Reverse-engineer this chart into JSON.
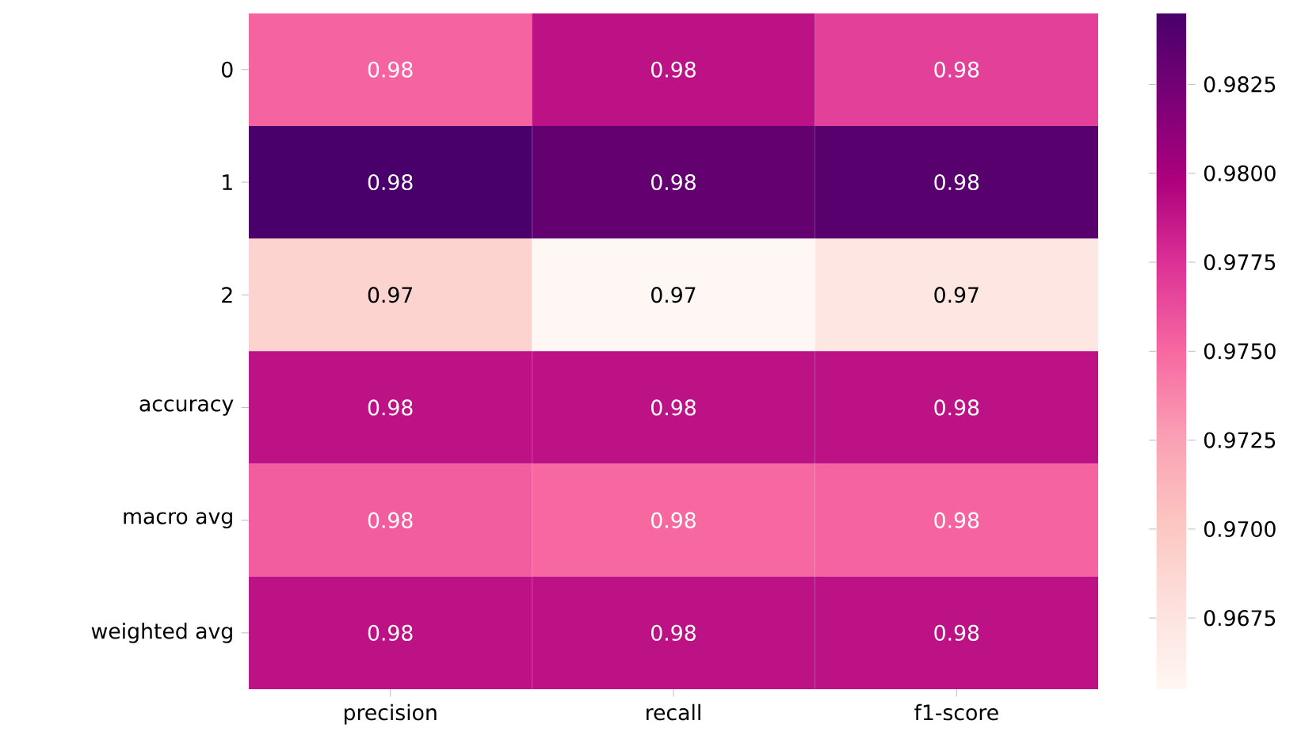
{
  "chart_data": {
    "type": "heatmap",
    "categories": [
      "precision",
      "recall",
      "f1-score"
    ],
    "y_categories": [
      "0",
      "1",
      "2",
      "accuracy",
      "macro avg",
      "weighted avg"
    ],
    "cells": [
      [
        0.9752,
        0.979,
        0.9768
      ],
      [
        0.9845,
        0.9832,
        0.9838
      ],
      [
        0.969,
        0.9655,
        0.9672
      ],
      [
        0.979,
        0.979,
        0.979
      ],
      [
        0.9755,
        0.975,
        0.9752
      ],
      [
        0.979,
        0.979,
        0.979
      ]
    ],
    "cell_labels": [
      [
        "0.98",
        "0.98",
        "0.98"
      ],
      [
        "0.98",
        "0.98",
        "0.98"
      ],
      [
        "0.97",
        "0.97",
        "0.97"
      ],
      [
        "0.98",
        "0.98",
        "0.98"
      ],
      [
        "0.98",
        "0.98",
        "0.98"
      ],
      [
        "0.98",
        "0.98",
        "0.98"
      ]
    ],
    "clim": [
      0.9655,
      0.9845
    ],
    "cticks": [
      0.9675,
      {
        "value": 0.97,
        "label": "0.9700"
      },
      0.9725,
      {
        "value": 0.975,
        "label": "0.9750"
      },
      0.9775,
      {
        "value": 0.98,
        "label": "0.9800"
      },
      0.9825
    ]
  }
}
